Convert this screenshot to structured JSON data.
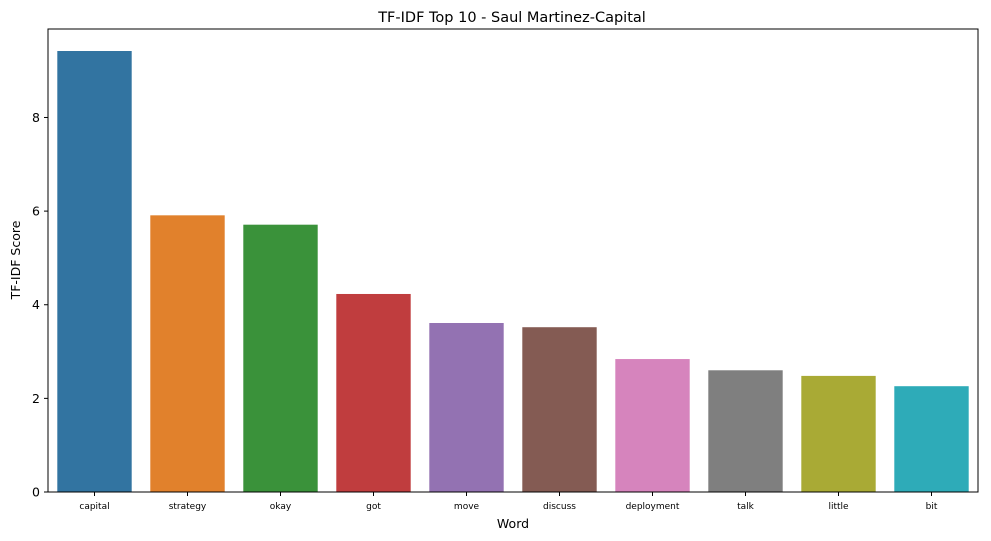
{
  "chart_data": {
    "type": "bar",
    "title": "TF-IDF Top 10 - Saul Martinez-Capital",
    "xlabel": "Word",
    "ylabel": "TF-IDF Score",
    "categories": [
      "capital",
      "strategy",
      "okay",
      "got",
      "move",
      "discuss",
      "deployment",
      "talk",
      "little",
      "bit"
    ],
    "values": [
      9.42,
      5.91,
      5.71,
      4.23,
      3.61,
      3.52,
      2.84,
      2.6,
      2.48,
      2.26
    ],
    "colors": [
      "#3274a1",
      "#e1812c",
      "#3a923a",
      "#c03d3e",
      "#9372b2",
      "#845b53",
      "#d684bd",
      "#7f7f7f",
      "#a9aa35",
      "#2eabb8"
    ],
    "ylim": [
      0,
      9.89
    ],
    "yticks": [
      0,
      2,
      4,
      6,
      8
    ],
    "grid": false,
    "legend": "none"
  }
}
